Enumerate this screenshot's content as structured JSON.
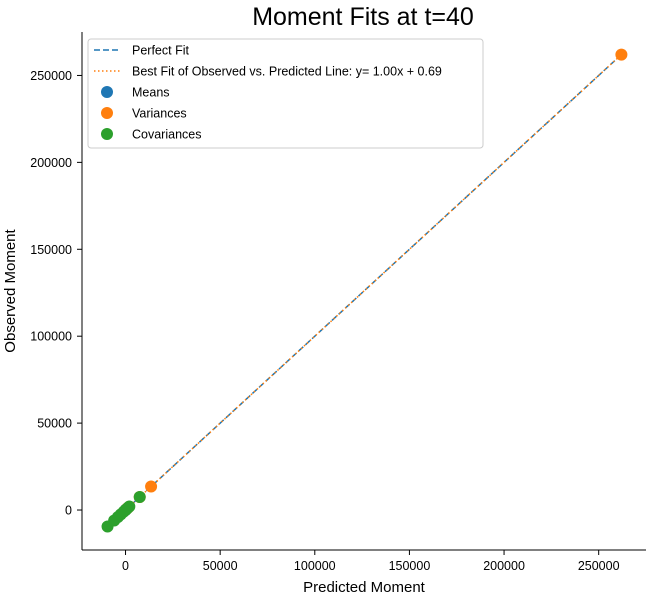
{
  "chart_data": {
    "type": "scatter",
    "title": "Moment Fits at t=40",
    "xlabel": "Predicted Moment",
    "ylabel": "Observed Moment",
    "xlim": [
      -23000,
      275000
    ],
    "ylim": [
      -23000,
      275000
    ],
    "xticks": [
      0,
      50000,
      100000,
      150000,
      200000,
      250000
    ],
    "yticks": [
      0,
      50000,
      100000,
      150000,
      200000,
      250000
    ],
    "xtick_labels": [
      "0",
      "50000",
      "100000",
      "150000",
      "200000",
      "250000"
    ],
    "ytick_labels": [
      "0",
      "50000",
      "100000",
      "150000",
      "200000",
      "250000"
    ],
    "grid": false,
    "legend_position": "top-left",
    "lines": [
      {
        "name": "Perfect Fit",
        "style": "dashed",
        "color": "#1f77b4",
        "x": [
          -10000,
          262000
        ],
        "y": [
          -10000,
          262000
        ]
      },
      {
        "name": "Best Fit of Observed vs. Predicted Line: y= 1.00x + 0.69",
        "style": "dotted",
        "color": "#ff7f0e",
        "x": [
          -10000,
          262000
        ],
        "y": [
          -9999.31,
          262000.69
        ]
      }
    ],
    "series": [
      {
        "name": "Means",
        "color": "#1f77b4",
        "points": [
          [
            30,
            30
          ],
          [
            60,
            60
          ],
          [
            100,
            100
          ]
        ]
      },
      {
        "name": "Variances",
        "color": "#ff7f0e",
        "points": [
          [
            262000,
            262000
          ],
          [
            13500,
            13500
          ],
          [
            7500,
            7500
          ],
          [
            1500,
            1500
          ],
          [
            500,
            500
          ]
        ]
      },
      {
        "name": "Covariances",
        "color": "#2ca02c",
        "points": [
          [
            -9500,
            -9500
          ],
          [
            -6000,
            -6000
          ],
          [
            -4000,
            -4000
          ],
          [
            -2500,
            -2500
          ],
          [
            -1000,
            -1000
          ],
          [
            0,
            0
          ],
          [
            1000,
            1000
          ],
          [
            2000,
            2000
          ],
          [
            7500,
            7500
          ]
        ]
      }
    ]
  }
}
